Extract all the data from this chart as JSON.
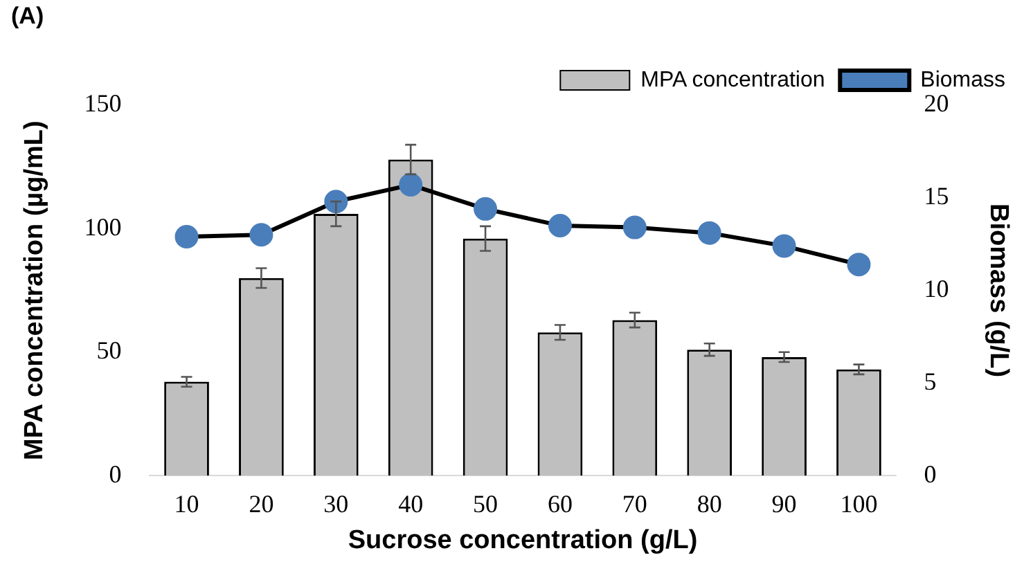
{
  "chart_data": {
    "type": "bar",
    "title": "(A)",
    "xlabel": "Sucrose concentration (g/L)",
    "ylabel": "MPA concentration (µg/mL)",
    "y2label": "Biomass (g/L)",
    "categories": [
      "10",
      "20",
      "30",
      "40",
      "50",
      "60",
      "70",
      "80",
      "90",
      "100"
    ],
    "series": [
      {
        "name": "MPA concentration",
        "color": "#bfbfbf",
        "values": [
          38,
          80,
          106,
          128,
          96,
          58,
          63,
          51,
          48,
          43
        ],
        "errors": [
          2,
          4,
          5,
          6,
          5,
          3,
          3,
          2.5,
          2,
          2
        ]
      },
      {
        "name": "Biomass",
        "type": "line",
        "axis": "y2",
        "color": "#4a7ebb",
        "values": [
          12.9,
          13.0,
          14.8,
          15.7,
          14.4,
          13.5,
          13.4,
          13.1,
          12.4,
          11.4
        ]
      }
    ],
    "ylim": [
      0,
      150
    ],
    "yticks": [
      0,
      50,
      100,
      150
    ],
    "y2lim": [
      0,
      20
    ],
    "y2ticks": [
      0,
      5,
      10,
      15,
      20
    ],
    "grid": false,
    "legend": "top right",
    "marker": "circle",
    "line_style": "solid"
  }
}
